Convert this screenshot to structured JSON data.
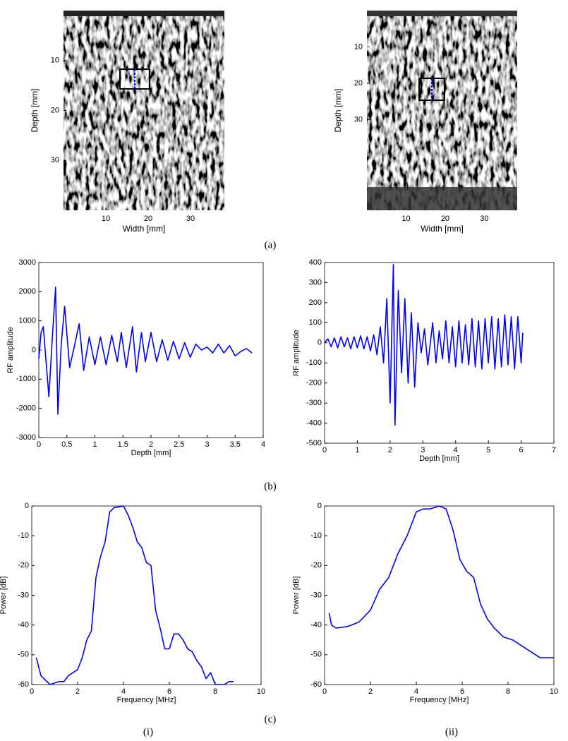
{
  "chart_data": [
    {
      "type": "image",
      "xlabel": "Width [mm]",
      "ylabel": "Depth [mm]",
      "xlim": [
        0,
        38
      ],
      "ylim": [
        0,
        40
      ],
      "xticks": [
        10,
        20,
        30
      ],
      "yticks": [
        10,
        20,
        30
      ]
    },
    {
      "type": "image",
      "xlabel": "Width [mm]",
      "ylabel": "Depth [mm]",
      "xlim": [
        0,
        38.4
      ],
      "ylim": [
        0,
        55
      ],
      "xticks": [
        10,
        20,
        30
      ],
      "yticks": [
        10,
        20,
        30
      ]
    },
    {
      "type": "line",
      "xlabel": "Depth [mm]",
      "ylabel": "RF amplitude",
      "color": "#0000ff",
      "xlim": [
        0,
        4
      ],
      "ylim": [
        -3000,
        3000
      ],
      "xticks": [
        0,
        0.5,
        1,
        1.5,
        2,
        2.5,
        3,
        3.5,
        4
      ],
      "yticks": [
        -3000,
        -2000,
        -1000,
        0,
        1000,
        2000,
        3000
      ],
      "x": [
        0,
        0.04,
        0.08,
        0.13,
        0.18,
        0.24,
        0.3,
        0.34,
        0.4,
        0.46,
        0.55,
        0.63,
        0.72,
        0.8,
        0.9,
        1.0,
        1.1,
        1.2,
        1.3,
        1.4,
        1.47,
        1.56,
        1.67,
        1.74,
        1.83,
        1.9,
        2.0,
        2.1,
        2.2,
        2.3,
        2.4,
        2.5,
        2.6,
        2.7,
        2.8,
        2.9,
        3.0,
        3.1,
        3.2,
        3.3,
        3.4,
        3.5,
        3.6,
        3.7,
        3.8
      ],
      "values": [
        -300,
        600,
        800,
        -400,
        -1600,
        400,
        2150,
        -2200,
        200,
        1500,
        -600,
        100,
        900,
        -700,
        450,
        -500,
        450,
        -500,
        500,
        -400,
        600,
        -600,
        800,
        -750,
        600,
        -400,
        600,
        -400,
        350,
        -350,
        300,
        -300,
        250,
        -250,
        200,
        0,
        100,
        -100,
        200,
        -100,
        150,
        -200,
        -50,
        50,
        -100
      ]
    },
    {
      "type": "line",
      "xlabel": "Depth [mm]",
      "ylabel": "RF amplitude",
      "color": "#0000ff",
      "xlim": [
        0,
        7
      ],
      "ylim": [
        -500,
        400
      ],
      "xticks": [
        0,
        1,
        2,
        3,
        4,
        5,
        6,
        7
      ],
      "yticks": [
        -500,
        -400,
        -300,
        -200,
        -100,
        0,
        100,
        200,
        300,
        400
      ],
      "x": [
        0,
        0.1,
        0.2,
        0.3,
        0.4,
        0.5,
        0.6,
        0.7,
        0.8,
        0.9,
        1.0,
        1.1,
        1.2,
        1.3,
        1.4,
        1.5,
        1.6,
        1.7,
        1.8,
        1.9,
        2.0,
        2.1,
        2.15,
        2.25,
        2.35,
        2.45,
        2.55,
        2.65,
        2.75,
        2.85,
        2.95,
        3.05,
        3.15,
        3.3,
        3.4,
        3.5,
        3.6,
        3.7,
        3.8,
        3.9,
        4.0,
        4.1,
        4.2,
        4.3,
        4.4,
        4.5,
        4.6,
        4.7,
        4.8,
        4.9,
        5.0,
        5.1,
        5.2,
        5.3,
        5.4,
        5.5,
        5.6,
        5.7,
        5.8,
        5.9,
        6.0,
        6.05
      ],
      "values": [
        0,
        20,
        -20,
        25,
        -25,
        30,
        -20,
        25,
        -30,
        30,
        -25,
        35,
        -30,
        30,
        -40,
        40,
        -60,
        80,
        -100,
        220,
        -300,
        390,
        -410,
        260,
        -150,
        220,
        -200,
        150,
        -220,
        100,
        -50,
        70,
        -110,
        100,
        -100,
        60,
        -80,
        110,
        -100,
        80,
        -120,
        110,
        -100,
        90,
        -110,
        120,
        -120,
        110,
        -130,
        120,
        -100,
        130,
        -130,
        120,
        -120,
        140,
        -110,
        130,
        -130,
        130,
        -100,
        50
      ]
    },
    {
      "type": "line",
      "xlabel": "Frequency [MHz]",
      "ylabel": "Power [dB]",
      "color": "#0000ff",
      "xlim": [
        0,
        10
      ],
      "ylim": [
        -60,
        0
      ],
      "xticks": [
        0,
        2,
        4,
        6,
        8,
        10
      ],
      "yticks": [
        -60,
        -50,
        -40,
        -30,
        -20,
        -10,
        0
      ],
      "x": [
        0.2,
        0.4,
        0.8,
        1.2,
        1.4,
        1.6,
        2.0,
        2.2,
        2.4,
        2.6,
        2.8,
        3.0,
        3.2,
        3.4,
        3.6,
        3.8,
        4.0,
        4.2,
        4.4,
        4.6,
        4.8,
        5.0,
        5.2,
        5.4,
        5.6,
        5.8,
        6.0,
        6.2,
        6.4,
        6.6,
        6.8,
        7.0,
        7.2,
        7.4,
        7.6,
        7.8,
        8.0,
        8.4,
        8.6,
        8.8
      ],
      "values": [
        -51,
        -57,
        -60,
        -59,
        -59,
        -57,
        -55,
        -51,
        -45,
        -42,
        -24,
        -17,
        -12,
        -2,
        -0.5,
        -0.3,
        0,
        -3,
        -7,
        -12,
        -14,
        -19,
        -20,
        -35,
        -41,
        -48,
        -48,
        -43,
        -43,
        -45,
        -48,
        -49,
        -52,
        -54,
        -58,
        -56,
        -60,
        -60,
        -59,
        -59
      ]
    },
    {
      "type": "line",
      "xlabel": "Frequency [MHz]",
      "ylabel": "Power [dB]",
      "color": "#0000ff",
      "xlim": [
        0,
        10
      ],
      "ylim": [
        -60,
        0
      ],
      "xticks": [
        0,
        2,
        4,
        6,
        8,
        10
      ],
      "yticks": [
        -60,
        -50,
        -40,
        -30,
        -20,
        -10,
        0
      ],
      "x": [
        0.2,
        0.3,
        0.5,
        1.0,
        1.5,
        2.0,
        2.4,
        2.8,
        3.2,
        3.6,
        4.0,
        4.3,
        4.6,
        5.0,
        5.3,
        5.6,
        5.9,
        6.2,
        6.5,
        6.8,
        7.1,
        7.4,
        7.8,
        8.2,
        8.6,
        9.0,
        9.4,
        9.8,
        10
      ],
      "values": [
        -36,
        -40,
        -41,
        -40.5,
        -39,
        -35,
        -28,
        -24,
        -16,
        -10,
        -2,
        -1,
        -1,
        0,
        -1,
        -8,
        -18,
        -22,
        -24,
        -33,
        -38,
        -41,
        -44,
        -45,
        -47,
        -49,
        -51,
        -51,
        -51
      ]
    }
  ],
  "panel_labels": {
    "a": "(a)",
    "b": "(b)",
    "c": "(c)",
    "i": "(i)",
    "ii": "(ii)"
  }
}
